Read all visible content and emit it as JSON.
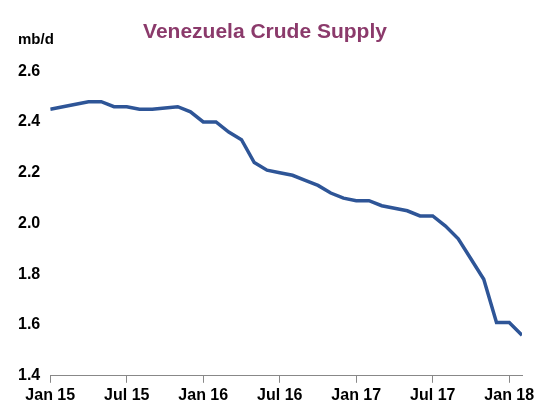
{
  "chart_data": {
    "type": "line",
    "title": "Venezuela Crude Supply",
    "ylabel": "mb/d",
    "categories": [
      "Jan 15",
      null,
      null,
      null,
      null,
      null,
      "Jul 15",
      null,
      null,
      null,
      null,
      null,
      "Jan 16",
      null,
      null,
      null,
      null,
      null,
      "Jul 16",
      null,
      null,
      null,
      null,
      null,
      "Jan 17",
      null,
      null,
      null,
      null,
      null,
      "Jul 17",
      null,
      null,
      null,
      null,
      null,
      "Jan 18",
      null
    ],
    "values": [
      2.45,
      2.46,
      2.47,
      2.48,
      2.48,
      2.46,
      2.46,
      2.45,
      2.45,
      2.455,
      2.46,
      2.44,
      2.4,
      2.4,
      2.36,
      2.33,
      2.24,
      2.21,
      2.2,
      2.19,
      2.17,
      2.15,
      2.12,
      2.1,
      2.09,
      2.09,
      2.07,
      2.06,
      2.05,
      2.03,
      2.03,
      1.99,
      1.94,
      1.86,
      1.78,
      1.61,
      1.61,
      1.56
    ],
    "color": "#2e5597",
    "ylim": [
      1.4,
      2.6
    ],
    "yticks": [
      1.4,
      1.6,
      1.8,
      {
        "value": 2,
        "label": "2.0"
      },
      2.2,
      2.4,
      2.6
    ],
    "grid": false,
    "legend": false
  }
}
